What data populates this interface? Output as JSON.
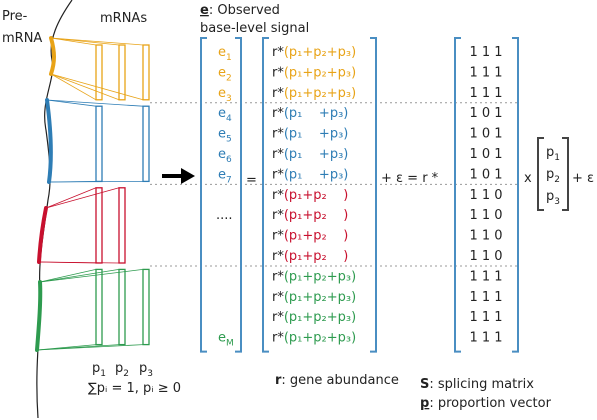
{
  "gene_label_lines": [
    "Pre-",
    "mRNA"
  ],
  "mrnas_label": "mRNAs",
  "observed": {
    "symbol": "e",
    "lines": [
      ": Observed",
      "base-level signal"
    ]
  },
  "groups": [
    {
      "color": "#e8a317",
      "isoforms": [
        true,
        true,
        true
      ],
      "rows": [
        {
          "e": {
            "letter": "e",
            "sub": "1"
          },
          "r": "r*",
          "expr": "(p₁+p₂+p₃)",
          "s": "1 1 1"
        },
        {
          "e": {
            "letter": "e",
            "sub": "2"
          },
          "r": "r*",
          "expr": "(p₁+p₂+p₃)",
          "s": "1 1 1"
        },
        {
          "e": {
            "letter": "e",
            "sub": "3"
          },
          "r": "r*",
          "expr": "(p₁+p₂+p₃)",
          "s": "1 1 1"
        }
      ]
    },
    {
      "color": "#2e7db5",
      "isoforms": [
        true,
        false,
        true
      ],
      "rows": [
        {
          "e": {
            "letter": "e",
            "sub": "4"
          },
          "r": "r*",
          "expr": "(p₁    +p₃)",
          "s": "1 0 1"
        },
        {
          "e": {
            "letter": "e",
            "sub": "5"
          },
          "r": "r*",
          "expr": "(p₁    +p₃)",
          "s": "1 0 1"
        },
        {
          "e": {
            "letter": "e",
            "sub": "6"
          },
          "r": "r*",
          "expr": "(p₁    +p₃)",
          "s": "1 0 1"
        },
        {
          "e": {
            "letter": "e",
            "sub": "7"
          },
          "r": "r*",
          "expr": "(p₁    +p₃)",
          "s": "1 0 1"
        }
      ]
    },
    {
      "color": "#c8102e",
      "isoforms": [
        true,
        true,
        false
      ],
      "rows": [
        {
          "e": null,
          "r": "r*",
          "expr": "(p₁+p₂    )",
          "s": "1 1 0"
        },
        {
          "e": "....",
          "r": "r*",
          "expr": "(p₁+p₂    )",
          "s": "1 1 0"
        },
        {
          "e": null,
          "r": "r*",
          "expr": "(p₁+p₂    )",
          "s": "1 1 0"
        },
        {
          "e": null,
          "r": "r*",
          "expr": "(p₁+p₂    )",
          "s": "1 1 0"
        }
      ]
    },
    {
      "color": "#2e9b4f",
      "isoforms": [
        true,
        true,
        true
      ],
      "rows": [
        {
          "e": null,
          "r": "r*",
          "expr": "(p₁+p₂+p₃)",
          "s": "1 1 1"
        },
        {
          "e": null,
          "r": "r*",
          "expr": "(p₁+p₂+p₃)",
          "s": "1 1 1"
        },
        {
          "e": null,
          "r": "r*",
          "expr": "(p₁+p₂+p₃)",
          "s": "1 1 1"
        },
        {
          "e": {
            "letter": "e",
            "sub": "M"
          },
          "r": "r*",
          "expr": "(p₁+p₂+p₃)",
          "s": "1 1 1"
        }
      ]
    }
  ],
  "equals": "=",
  "plus_eps_r": "+ ε = r *",
  "times": "x",
  "plus_eps": "+ ε",
  "p_vector": [
    {
      "letter": "p",
      "sub": "1"
    },
    {
      "letter": "p",
      "sub": "2"
    },
    {
      "letter": "p",
      "sub": "3"
    }
  ],
  "isoform_labels": [
    {
      "letter": "p",
      "sub": "1"
    },
    {
      "letter": "p",
      "sub": "2"
    },
    {
      "letter": "p",
      "sub": "3"
    }
  ],
  "constraint": "∑pᵢ = 1, pᵢ ≥ 0",
  "legend": [
    {
      "symbol": "r",
      "text": ": gene abundance"
    },
    {
      "symbol": "S",
      "text": ": splicing matrix"
    },
    {
      "symbol": "p",
      "text": ": proportion vector"
    }
  ]
}
